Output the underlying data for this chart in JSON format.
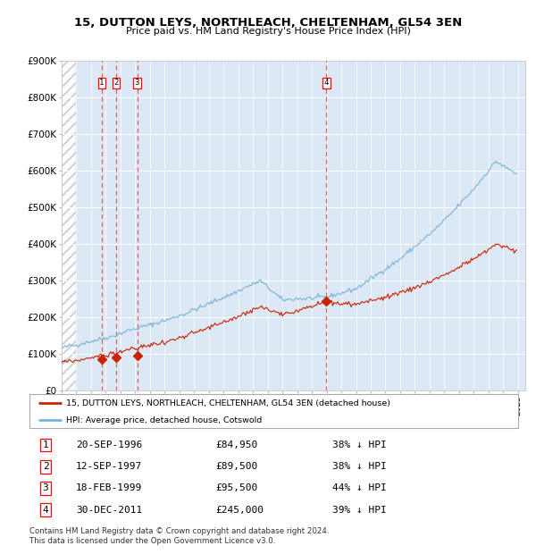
{
  "title": "15, DUTTON LEYS, NORTHLEACH, CHELTENHAM, GL54 3EN",
  "subtitle": "Price paid vs. HM Land Registry's House Price Index (HPI)",
  "ylim": [
    0,
    900000
  ],
  "yticks": [
    0,
    100000,
    200000,
    300000,
    400000,
    500000,
    600000,
    700000,
    800000,
    900000
  ],
  "ytick_labels": [
    "£0",
    "£100K",
    "£200K",
    "£300K",
    "£400K",
    "£500K",
    "£600K",
    "£700K",
    "£800K",
    "£900K"
  ],
  "xlim_start": 1994.0,
  "xlim_end": 2025.5,
  "hpi_color": "#7ab4d8",
  "price_color": "#cc2200",
  "marker_color": "#cc2200",
  "sale_dates_decimal": [
    1996.72,
    1997.7,
    1999.13,
    2011.99
  ],
  "sale_prices": [
    84950,
    89500,
    95500,
    245000
  ],
  "sale_labels": [
    "1",
    "2",
    "3",
    "4"
  ],
  "legend_line1": "15, DUTTON LEYS, NORTHLEACH, CHELTENHAM, GL54 3EN (detached house)",
  "legend_line2": "HPI: Average price, detached house, Cotswold",
  "table_rows": [
    [
      "1",
      "20-SEP-1996",
      "£84,950",
      "38% ↓ HPI"
    ],
    [
      "2",
      "12-SEP-1997",
      "£89,500",
      "38% ↓ HPI"
    ],
    [
      "3",
      "18-FEB-1999",
      "£95,500",
      "44% ↓ HPI"
    ],
    [
      "4",
      "30-DEC-2011",
      "£245,000",
      "39% ↓ HPI"
    ]
  ],
  "footnote": "Contains HM Land Registry data © Crown copyright and database right 2024.\nThis data is licensed under the Open Government Licence v3.0.",
  "bg_color": "#dce8f5",
  "grid_color": "#ffffff",
  "dashed_color": "#e06060"
}
